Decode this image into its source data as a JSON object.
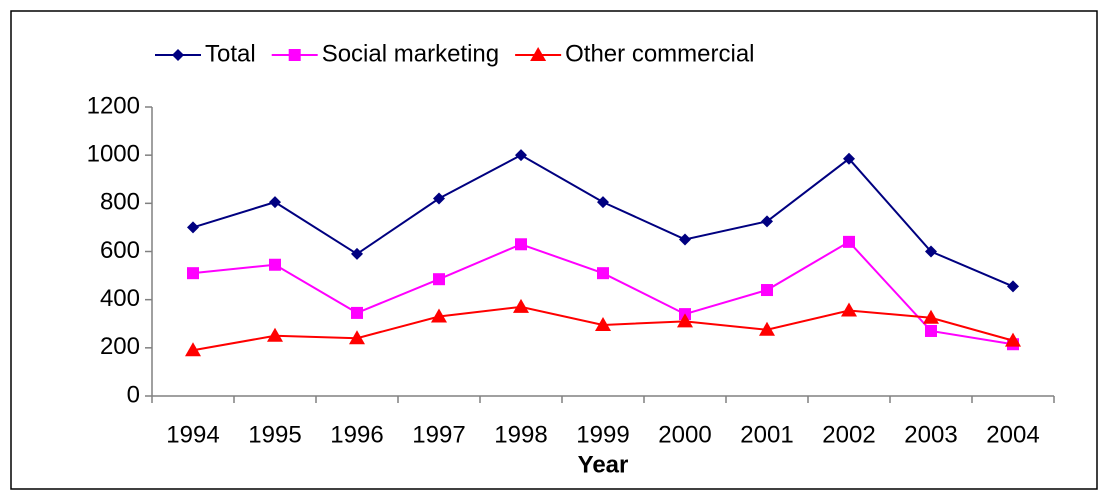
{
  "chart_data": {
    "type": "line",
    "x_label": "Year",
    "categories": [
      "1994",
      "1995",
      "1996",
      "1997",
      "1998",
      "1999",
      "2000",
      "2001",
      "2002",
      "2003",
      "2004"
    ],
    "series": [
      {
        "name": "Total",
        "color": "#000080",
        "marker": "diamond",
        "values": [
          700,
          805,
          590,
          820,
          1000,
          805,
          650,
          725,
          985,
          600,
          455
        ]
      },
      {
        "name": "Social marketing",
        "color": "#ff00ff",
        "marker": "square",
        "values": [
          510,
          545,
          345,
          485,
          630,
          510,
          340,
          440,
          640,
          270,
          215
        ]
      },
      {
        "name": "Other commercial",
        "color": "#ff0000",
        "marker": "triangle",
        "values": [
          190,
          250,
          240,
          330,
          370,
          295,
          310,
          275,
          355,
          325,
          230
        ]
      }
    ],
    "ylim": [
      0,
      1200
    ],
    "yticks": [
      0,
      200,
      400,
      600,
      800,
      1000,
      1200
    ],
    "grid": false,
    "legend": "top"
  }
}
